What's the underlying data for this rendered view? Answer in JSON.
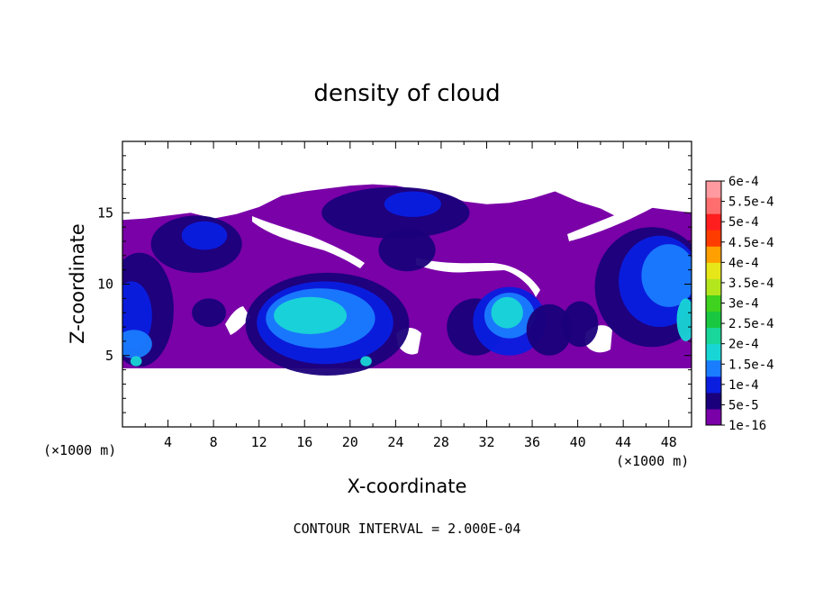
{
  "chart_data": {
    "type": "heatmap",
    "title": "density of cloud",
    "xlabel": "X-coordinate",
    "ylabel": "Z-coordinate",
    "x_unit_left": "(×1000 m)",
    "x_unit_right": "(×1000 m)",
    "xlim": [
      0,
      50
    ],
    "ylim": [
      0,
      20
    ],
    "x_ticks": [
      4,
      8,
      12,
      16,
      20,
      24,
      28,
      32,
      36,
      40,
      44,
      48
    ],
    "y_ticks": [
      5,
      10,
      15
    ],
    "colorbar": {
      "labels": [
        "1e-16",
        "5e-5",
        "1e-4",
        "1.5e-4",
        "2e-4",
        "2.5e-4",
        "3e-4",
        "3.5e-4",
        "4e-4",
        "4.5e-4",
        "5e-4",
        "5.5e-4",
        "6e-4"
      ],
      "colors": [
        "#7a00a8",
        "#1a007a",
        "#0a1ee0",
        "#1a7cff",
        "#19d6d6",
        "#19d69a",
        "#19c840",
        "#3fd21e",
        "#b4e61e",
        "#e6e619",
        "#ffa000",
        "#ff3c00",
        "#ff1e1e",
        "#ff6e6e",
        "#ff9aa0"
      ]
    },
    "cloud_top_profile": [
      [
        0,
        14.5
      ],
      [
        2,
        14.6
      ],
      [
        4,
        14.8
      ],
      [
        6,
        15.0
      ],
      [
        8,
        14.6
      ],
      [
        10,
        14.9
      ],
      [
        12,
        15.4
      ],
      [
        14,
        16.2
      ],
      [
        16,
        16.5
      ],
      [
        18,
        16.7
      ],
      [
        20,
        16.9
      ],
      [
        22,
        17.0
      ],
      [
        24,
        16.9
      ],
      [
        26,
        16.6
      ],
      [
        28,
        16.4
      ],
      [
        30,
        15.8
      ],
      [
        32,
        15.6
      ],
      [
        34,
        15.7
      ],
      [
        36,
        16.0
      ],
      [
        38,
        16.5
      ],
      [
        40,
        15.8
      ],
      [
        42,
        15.3
      ],
      [
        44,
        14.5
      ],
      [
        46,
        15.4
      ],
      [
        48,
        15.2
      ],
      [
        50,
        15.0
      ]
    ],
    "cloud_base": 4.1,
    "contour_interval_note": "CONTOUR INTERVAL = 2.000E-04"
  }
}
